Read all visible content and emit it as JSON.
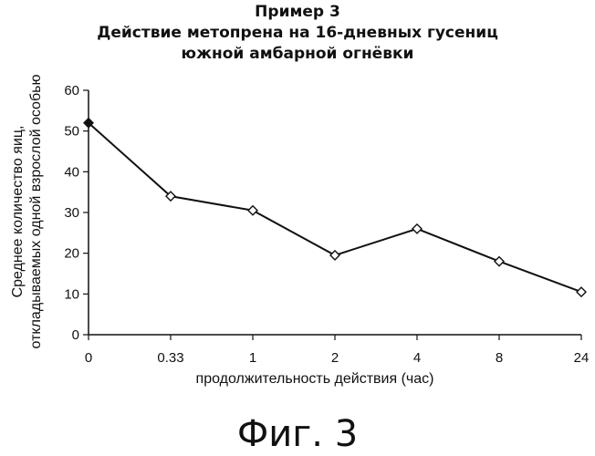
{
  "chart_data": {
    "type": "line",
    "title_lines": [
      "Пример 3",
      "Действие метопрена на 16-дневных гусениц",
      "южной амбарной огнёвки"
    ],
    "xlabel": "продолжительность действия (час)",
    "ylabel_lines": [
      "Среднее количество яиц,",
      "откладываемых одной взрослой особью"
    ],
    "categories": [
      "0",
      "0.33",
      "1",
      "2",
      "4",
      "8",
      "24"
    ],
    "yticks": [
      "0",
      "10",
      "20",
      "30",
      "40",
      "50",
      "60"
    ],
    "ylim": [
      0,
      60
    ],
    "series": [
      {
        "values": [
          52,
          34,
          30.5,
          19.5,
          26,
          18,
          10.5
        ],
        "color": "#111111"
      }
    ],
    "grid": false,
    "legend": "none"
  },
  "caption": "Фиг. 3"
}
